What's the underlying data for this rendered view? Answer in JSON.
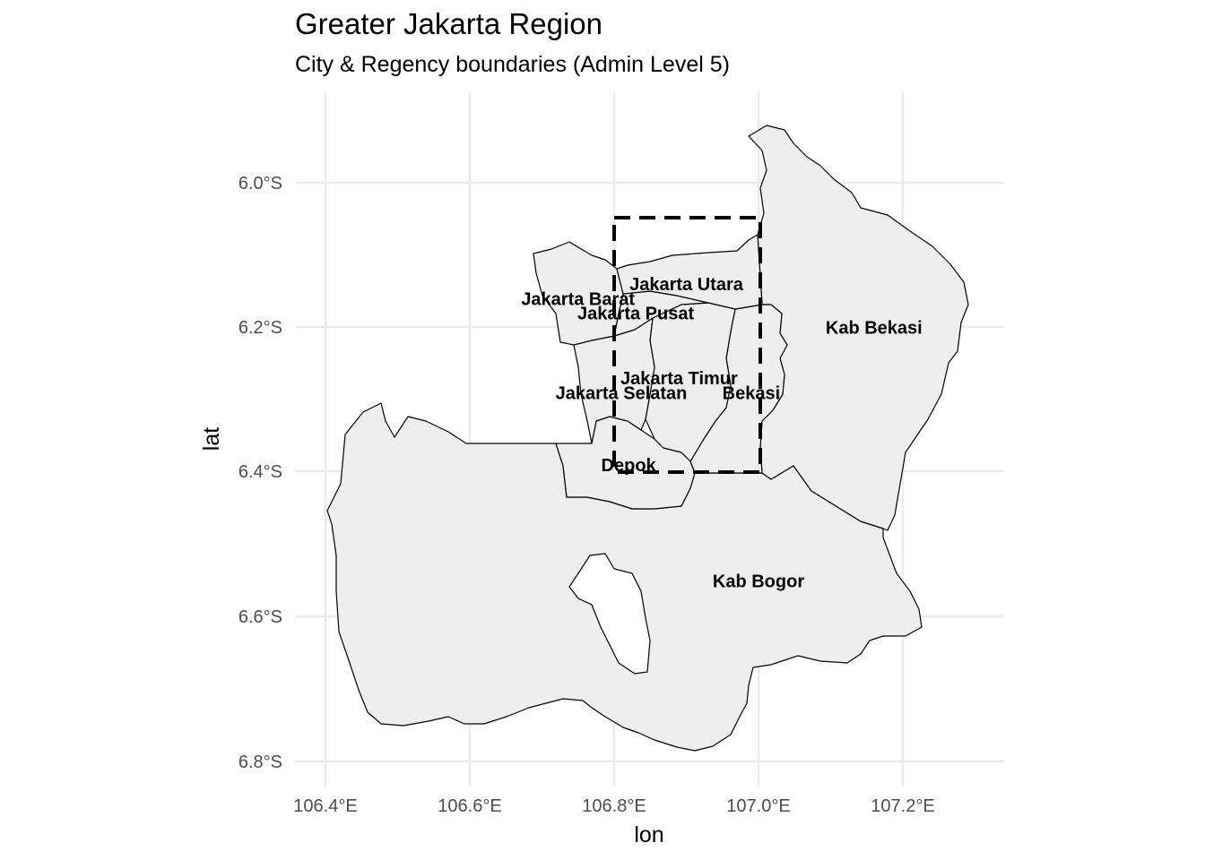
{
  "title": "Greater Jakarta Region",
  "subtitle": "City & Regency boundaries (Admin Level 5)",
  "axes": {
    "x_title": "lon",
    "y_title": "lat",
    "x_ticks": [
      "106.4°E",
      "106.6°E",
      "106.8°E",
      "107.0°E",
      "107.2°E"
    ],
    "y_ticks": [
      "6.0°S",
      "6.2°S",
      "6.4°S",
      "6.6°S",
      "6.8°S"
    ]
  },
  "regions": [
    {
      "name": "Jakarta Utara",
      "lon": 106.9,
      "lat": -6.14
    },
    {
      "name": "Jakarta Barat",
      "lon": 106.75,
      "lat": -6.16
    },
    {
      "name": "Jakarta Pusat",
      "lon": 106.83,
      "lat": -6.18
    },
    {
      "name": "Kab Bekasi",
      "lon": 107.16,
      "lat": -6.2
    },
    {
      "name": "Jakarta Timur",
      "lon": 106.89,
      "lat": -6.27
    },
    {
      "name": "Jakarta Selatan",
      "lon": 106.81,
      "lat": -6.29
    },
    {
      "name": "Bekasi",
      "lon": 106.99,
      "lat": -6.29
    },
    {
      "name": "Depok",
      "lon": 106.82,
      "lat": -6.39
    },
    {
      "name": "Kab Bogor",
      "lon": 107.0,
      "lat": -6.55
    }
  ],
  "focus_box": {
    "lon_min": 106.8,
    "lon_max": 107.0,
    "lat_min": -6.4,
    "lat_max": -6.05
  },
  "colors": {
    "fill": "#eeeeee",
    "border": "#000000",
    "grid": "#ebebeb"
  }
}
